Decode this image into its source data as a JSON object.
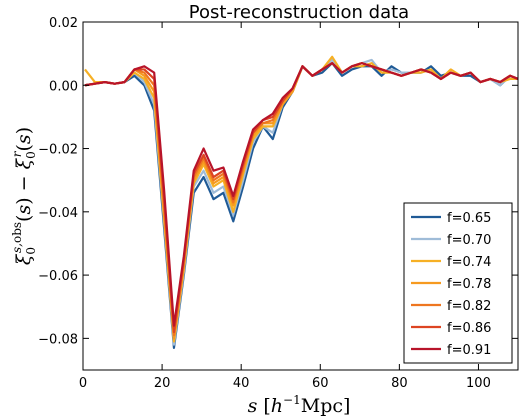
{
  "chart_data": {
    "type": "line",
    "title": "Post-reconstruction data",
    "xlabel": "s [h⁻¹Mpc]",
    "ylabel": "ξ₀^{s,obs}(s) − ξ₀^r(s)",
    "xlim": [
      0,
      110
    ],
    "ylim": [
      -0.09,
      0.02
    ],
    "x_ticks": [
      0,
      20,
      40,
      60,
      80,
      100
    ],
    "y_ticks": [
      -0.08,
      -0.06,
      -0.04,
      -0.02,
      0.0,
      0.02
    ],
    "x_tick_labels": [
      "0",
      "20",
      "40",
      "60",
      "80",
      "100"
    ],
    "y_tick_labels": [
      "−0.08",
      "−0.06",
      "−0.04",
      "−0.02",
      "0.00",
      "0.02"
    ],
    "legend_position": "lower-right",
    "grid": false,
    "x": [
      0.5,
      3,
      5.5,
      8,
      10.5,
      13,
      15.5,
      18,
      20.5,
      23,
      25.5,
      28,
      30.5,
      33,
      35.5,
      38,
      40.5,
      43,
      45.5,
      48,
      50.5,
      53,
      55.5,
      58,
      60.5,
      63,
      65.5,
      68,
      70.5,
      73,
      75.5,
      78,
      80.5,
      83,
      85.5,
      88,
      90.5,
      93,
      95.5,
      98,
      100.5,
      103,
      105.5,
      108,
      110
    ],
    "series": [
      {
        "name": "f=0.65",
        "color": "#1f5a96",
        "values": [
          0.0,
          0.0005,
          0.001,
          0.0005,
          0.001,
          0.003,
          0.0,
          -0.008,
          -0.045,
          -0.083,
          -0.06,
          -0.034,
          -0.029,
          -0.036,
          -0.034,
          -0.043,
          -0.032,
          -0.02,
          -0.013,
          -0.017,
          -0.007,
          -0.002,
          0.006,
          0.003,
          0.004,
          0.007,
          0.003,
          0.005,
          0.006,
          0.006,
          0.003,
          0.006,
          0.004,
          0.004,
          0.004,
          0.006,
          0.003,
          0.004,
          0.003,
          0.003,
          0.001,
          0.002,
          0.0,
          0.003,
          0.002
        ]
      },
      {
        "name": "f=0.70",
        "color": "#9fbcd8",
        "values": [
          0.0,
          0.0005,
          0.001,
          0.0005,
          0.001,
          0.004,
          0.001,
          -0.006,
          -0.043,
          -0.082,
          -0.059,
          -0.032,
          -0.027,
          -0.034,
          -0.032,
          -0.041,
          -0.03,
          -0.018,
          -0.013,
          -0.015,
          -0.006,
          -0.002,
          0.006,
          0.003,
          0.005,
          0.008,
          0.004,
          0.006,
          0.007,
          0.008,
          0.004,
          0.005,
          0.004,
          0.004,
          0.004,
          0.005,
          0.002,
          0.004,
          0.003,
          0.004,
          0.001,
          0.002,
          0.0,
          0.003,
          0.002
        ]
      },
      {
        "name": "f=0.74",
        "color": "#f6b025",
        "values": [
          0.005,
          0.001,
          0.001,
          0.0005,
          0.001,
          0.004,
          0.002,
          -0.004,
          -0.042,
          -0.081,
          -0.058,
          -0.031,
          -0.025,
          -0.032,
          -0.03,
          -0.04,
          -0.028,
          -0.017,
          -0.013,
          -0.013,
          -0.006,
          -0.002,
          0.006,
          0.003,
          0.005,
          0.009,
          0.004,
          0.006,
          0.006,
          0.007,
          0.004,
          0.004,
          0.003,
          0.004,
          0.004,
          0.005,
          0.002,
          0.005,
          0.003,
          0.004,
          0.001,
          0.002,
          0.001,
          0.002,
          0.002
        ]
      },
      {
        "name": "f=0.78",
        "color": "#f69a20",
        "values": [
          0.0,
          0.0005,
          0.001,
          0.0005,
          0.001,
          0.005,
          0.003,
          -0.002,
          -0.04,
          -0.08,
          -0.057,
          -0.03,
          -0.024,
          -0.031,
          -0.029,
          -0.038,
          -0.027,
          -0.016,
          -0.012,
          -0.012,
          -0.006,
          -0.002,
          0.006,
          0.003,
          0.005,
          0.007,
          0.004,
          0.006,
          0.007,
          0.006,
          0.005,
          0.004,
          0.003,
          0.004,
          0.005,
          0.004,
          0.002,
          0.004,
          0.003,
          0.004,
          0.001,
          0.002,
          0.001,
          0.003,
          0.002
        ]
      },
      {
        "name": "f=0.82",
        "color": "#ee7620",
        "values": [
          0.0,
          0.0005,
          0.001,
          0.0005,
          0.001,
          0.005,
          0.004,
          0.0,
          -0.038,
          -0.079,
          -0.056,
          -0.029,
          -0.023,
          -0.03,
          -0.028,
          -0.037,
          -0.026,
          -0.015,
          -0.012,
          -0.011,
          -0.005,
          -0.001,
          0.006,
          0.003,
          0.005,
          0.007,
          0.004,
          0.006,
          0.007,
          0.006,
          0.005,
          0.004,
          0.003,
          0.004,
          0.005,
          0.004,
          0.002,
          0.004,
          0.003,
          0.004,
          0.001,
          0.002,
          0.001,
          0.003,
          0.002
        ]
      },
      {
        "name": "f=0.86",
        "color": "#dd4422",
        "values": [
          0.0,
          0.0005,
          0.001,
          0.0005,
          0.001,
          0.005,
          0.005,
          0.002,
          -0.036,
          -0.078,
          -0.055,
          -0.028,
          -0.022,
          -0.029,
          -0.027,
          -0.036,
          -0.025,
          -0.015,
          -0.011,
          -0.01,
          -0.005,
          -0.001,
          0.006,
          0.003,
          0.005,
          0.007,
          0.004,
          0.006,
          0.007,
          0.006,
          0.005,
          0.004,
          0.003,
          0.004,
          0.005,
          0.004,
          0.002,
          0.004,
          0.003,
          0.004,
          0.001,
          0.002,
          0.001,
          0.003,
          0.002
        ]
      },
      {
        "name": "f=0.91",
        "color": "#b8142a",
        "values": [
          0.0,
          0.0005,
          0.001,
          0.0005,
          0.001,
          0.005,
          0.006,
          0.004,
          -0.033,
          -0.076,
          -0.054,
          -0.027,
          -0.02,
          -0.027,
          -0.026,
          -0.035,
          -0.024,
          -0.014,
          -0.011,
          -0.009,
          -0.004,
          -0.001,
          0.006,
          0.003,
          0.005,
          0.007,
          0.004,
          0.006,
          0.007,
          0.006,
          0.005,
          0.004,
          0.003,
          0.004,
          0.005,
          0.004,
          0.002,
          0.004,
          0.003,
          0.004,
          0.001,
          0.002,
          0.001,
          0.003,
          0.002
        ]
      }
    ]
  }
}
